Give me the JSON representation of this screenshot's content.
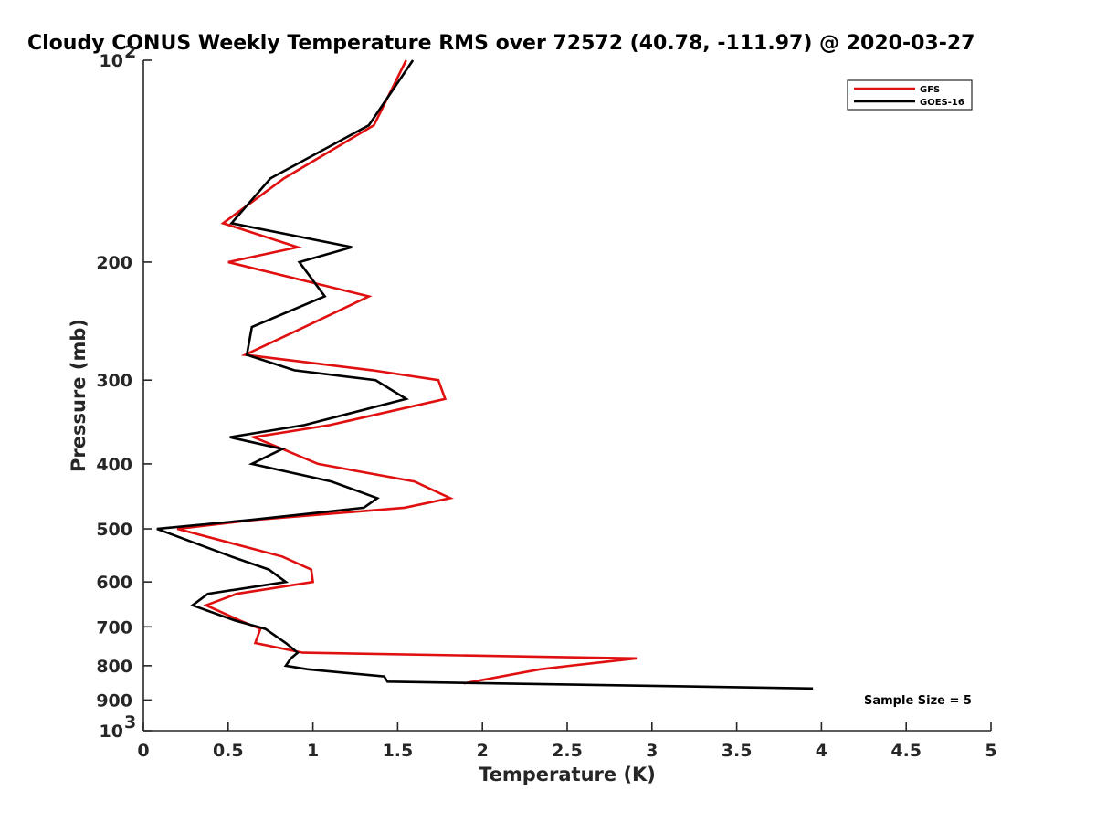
{
  "chart_data": {
    "type": "line",
    "title": "Cloudy CONUS Weekly Temperature RMS over 72572 (40.78, -111.97) @ 2020-03-27",
    "xlabel": "Temperature (K)",
    "ylabel": "Pressure (mb)",
    "xlim": [
      0,
      5
    ],
    "ylim": [
      100,
      1000
    ],
    "yscale": "log",
    "y_reversed": true,
    "x_ticks": [
      "0",
      "0.5",
      "1",
      "1.5",
      "2",
      "2.5",
      "3",
      "3.5",
      "4",
      "4.5",
      "5"
    ],
    "x_tick_values": [
      0,
      0.5,
      1,
      1.5,
      2,
      2.5,
      3,
      3.5,
      4,
      4.5,
      5
    ],
    "y_ticks": [
      {
        "value": 100,
        "base": "10",
        "exp": "2",
        "label": ""
      },
      {
        "value": 200,
        "label": "200"
      },
      {
        "value": 300,
        "label": "300"
      },
      {
        "value": 400,
        "label": "400"
      },
      {
        "value": 500,
        "label": "500"
      },
      {
        "value": 600,
        "label": "600"
      },
      {
        "value": 700,
        "label": "700"
      },
      {
        "value": 800,
        "label": "800"
      },
      {
        "value": 900,
        "label": "900"
      },
      {
        "value": 1000,
        "base": "10",
        "exp": "3",
        "label": ""
      }
    ],
    "grid": false,
    "legend_position": "top-right",
    "series": [
      {
        "name": "GFS",
        "color": "#e01010",
        "points": [
          [
            1.55,
            100
          ],
          [
            1.36,
            125
          ],
          [
            0.83,
            150
          ],
          [
            0.47,
            175
          ],
          [
            0.91,
            190
          ],
          [
            0.5,
            200
          ],
          [
            1.33,
            225
          ],
          [
            0.95,
            250
          ],
          [
            0.6,
            275
          ],
          [
            1.35,
            290
          ],
          [
            1.74,
            300
          ],
          [
            1.78,
            320
          ],
          [
            1.1,
            350
          ],
          [
            0.65,
            365
          ],
          [
            0.82,
            380
          ],
          [
            1.03,
            400
          ],
          [
            1.6,
            425
          ],
          [
            1.81,
            450
          ],
          [
            1.54,
            465
          ],
          [
            0.65,
            485
          ],
          [
            0.2,
            500
          ],
          [
            0.82,
            550
          ],
          [
            0.99,
            575
          ],
          [
            1.0,
            600
          ],
          [
            0.55,
            625
          ],
          [
            0.37,
            650
          ],
          [
            0.57,
            685
          ],
          [
            0.69,
            705
          ],
          [
            0.66,
            740
          ],
          [
            0.94,
            765
          ],
          [
            2.91,
            780
          ],
          [
            2.52,
            800
          ],
          [
            2.34,
            810
          ],
          [
            1.89,
            850
          ]
        ]
      },
      {
        "name": "GOES-16",
        "color": "#000000",
        "points": [
          [
            1.59,
            100
          ],
          [
            1.33,
            125
          ],
          [
            0.75,
            150
          ],
          [
            0.52,
            175
          ],
          [
            1.23,
            190
          ],
          [
            0.92,
            200
          ],
          [
            1.07,
            225
          ],
          [
            0.64,
            250
          ],
          [
            0.61,
            275
          ],
          [
            0.89,
            290
          ],
          [
            1.37,
            300
          ],
          [
            1.55,
            320
          ],
          [
            0.95,
            350
          ],
          [
            0.51,
            365
          ],
          [
            0.82,
            380
          ],
          [
            0.64,
            400
          ],
          [
            1.11,
            425
          ],
          [
            1.38,
            450
          ],
          [
            1.3,
            465
          ],
          [
            0.63,
            485
          ],
          [
            0.08,
            500
          ],
          [
            0.52,
            550
          ],
          [
            0.74,
            575
          ],
          [
            0.84,
            600
          ],
          [
            0.38,
            625
          ],
          [
            0.29,
            650
          ],
          [
            0.54,
            685
          ],
          [
            0.72,
            705
          ],
          [
            0.84,
            740
          ],
          [
            0.91,
            765
          ],
          [
            0.87,
            780
          ],
          [
            0.84,
            800
          ],
          [
            0.97,
            810
          ],
          [
            1.42,
            830
          ],
          [
            1.44,
            845
          ],
          [
            3.95,
            865
          ]
        ]
      }
    ],
    "legend_entries": [
      "GFS",
      "GOES-16"
    ],
    "annotation": "Sample Size = 5"
  }
}
